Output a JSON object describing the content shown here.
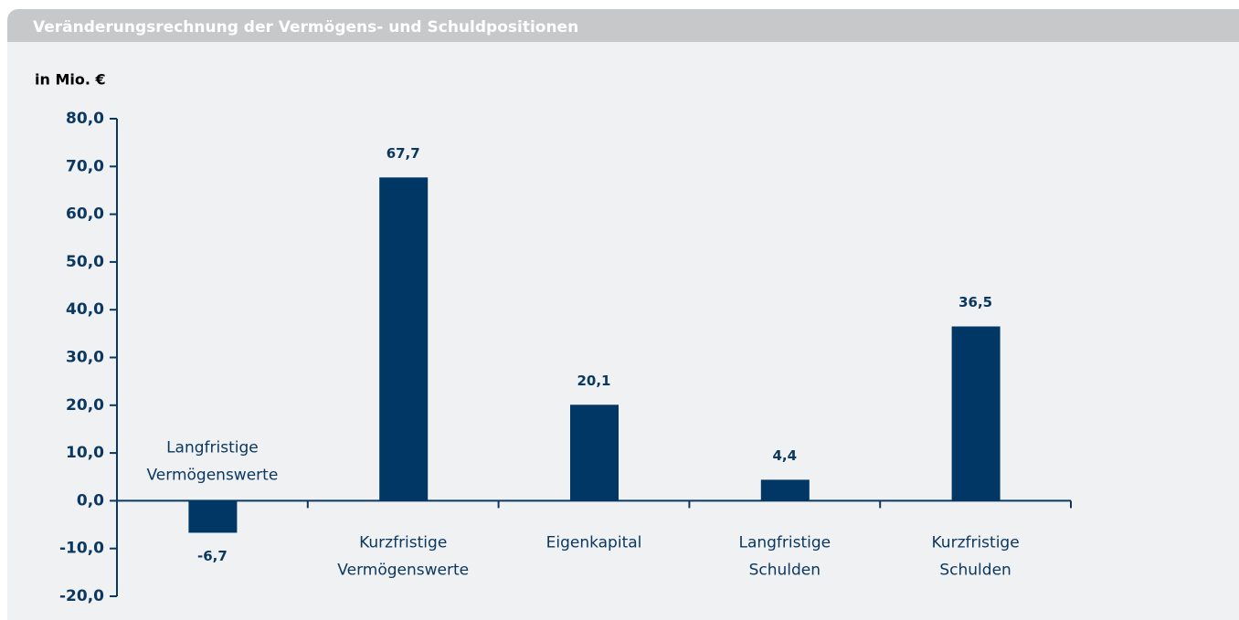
{
  "chart_data": {
    "type": "bar",
    "title": "Veränderungsrechnung der Vermögens- und Schuldpositionen",
    "subtitle": "in Mio. €",
    "categories": [
      "Langfristige Vermögenswerte",
      "Kurzfristige Vermögenswerte",
      "Eigenkapital",
      "Langfristige Schulden",
      "Kurzfristige Schulden"
    ],
    "values": [
      -6.7,
      67.7,
      20.1,
      4.4,
      36.5
    ],
    "value_labels": [
      "-6,7",
      "67,7",
      "20,1",
      "4,4",
      "36,5"
    ],
    "color": "#003764",
    "ylim": [
      -20,
      80
    ],
    "yticks": [
      {
        "value": -20,
        "label": "-20,0"
      },
      {
        "value": -10,
        "label": "-10,0"
      },
      {
        "value": 0,
        "label": "0,0"
      },
      {
        "value": 10,
        "label": "10,0"
      },
      {
        "value": 20,
        "label": "20,0"
      },
      {
        "value": 30,
        "label": "30,0"
      },
      {
        "value": 40,
        "label": "40,0"
      },
      {
        "value": 50,
        "label": "50,0"
      },
      {
        "value": 60,
        "label": "60,0"
      },
      {
        "value": 70,
        "label": "70,0"
      },
      {
        "value": 80,
        "label": "80,0"
      }
    ]
  }
}
